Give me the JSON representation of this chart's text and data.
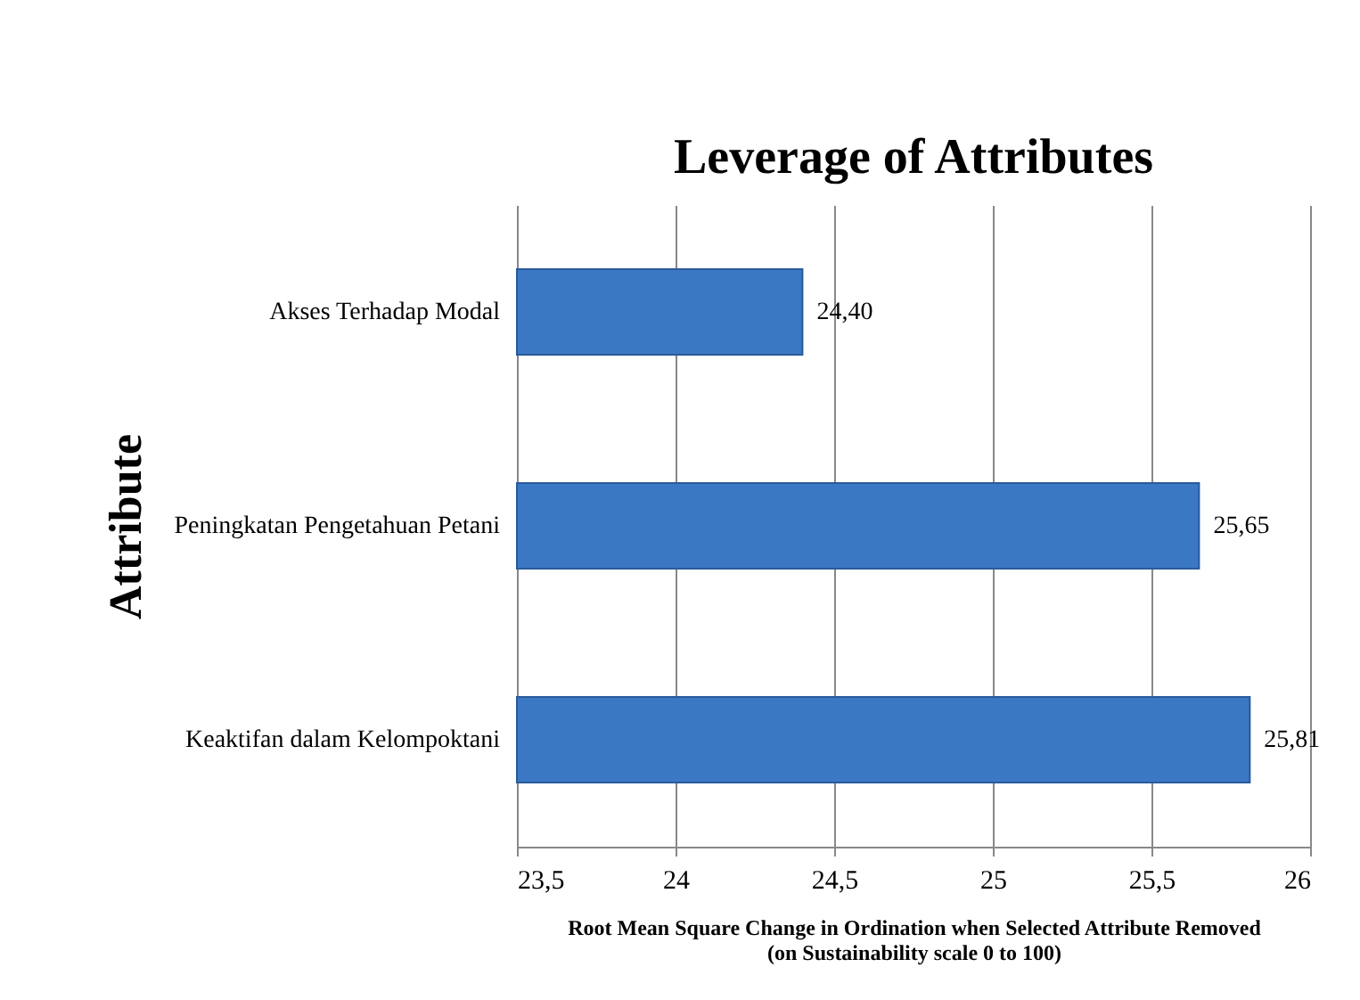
{
  "chart_data": {
    "type": "bar",
    "orientation": "horizontal",
    "title": "Leverage of Attributes",
    "xlabel": "Root Mean Square Change in Ordination when Selected Attribute Removed\n(on Sustainability scale 0 to 100)",
    "ylabel": "Attribute",
    "categories": [
      "Akses Terhadap Modal",
      "Peningkatan Pengetahuan Petani",
      "Keaktifan dalam Kelompoktani"
    ],
    "values": [
      24.4,
      25.65,
      25.81
    ],
    "value_labels": [
      "24,40",
      "25,65",
      "25,81"
    ],
    "color": "#3b78c4",
    "xlim": [
      23.5,
      26
    ],
    "xticks": [
      {
        "value": 23.5,
        "label": "23,5"
      },
      24,
      {
        "value": 24.5,
        "label": "24,5"
      },
      25,
      {
        "value": 25.5,
        "label": "25,5"
      },
      26
    ],
    "grid": "x"
  }
}
